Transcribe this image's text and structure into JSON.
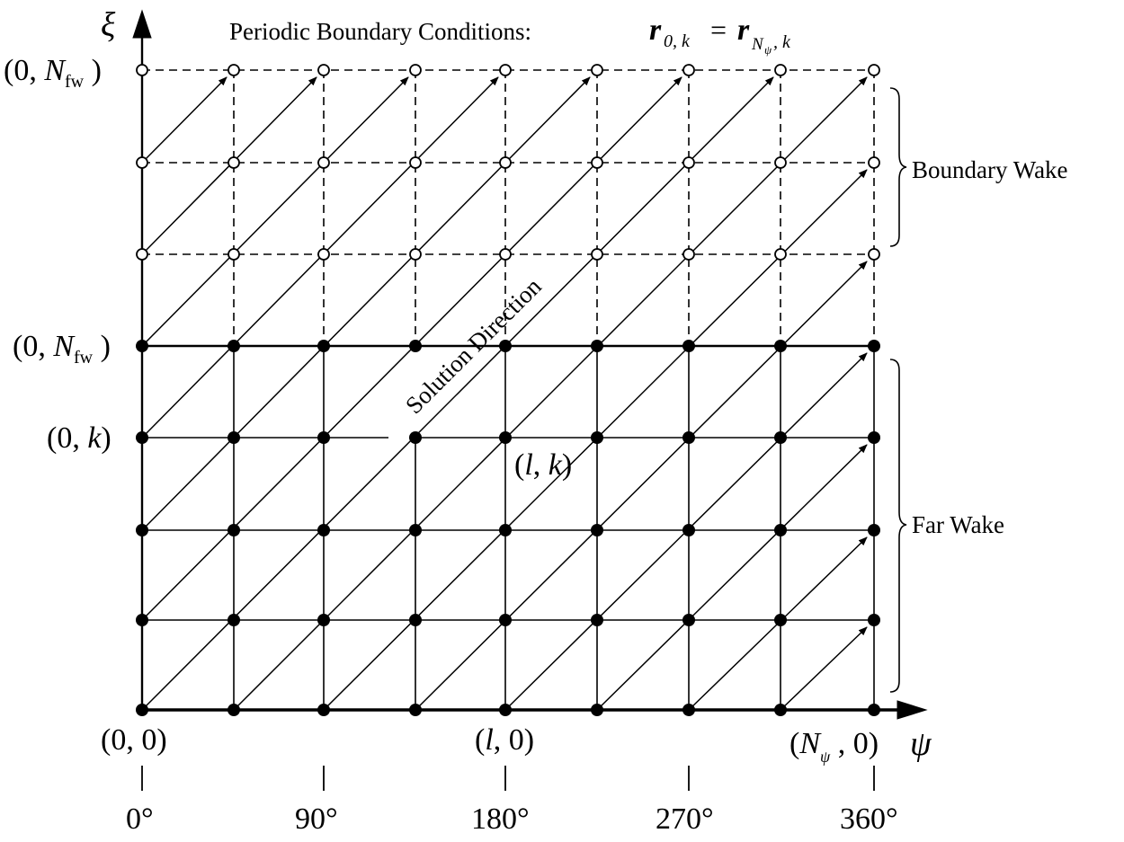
{
  "title": {
    "text": "Periodic Boundary Conditions:",
    "equation_lhs": "r",
    "equation_lhs_sub": "0, k",
    "equation_eq": "=",
    "equation_rhs": "r",
    "equation_rhs_sub_main": "N",
    "equation_rhs_sub_sub": "ψ",
    "equation_rhs_sub_tail": ", k"
  },
  "axes": {
    "vertical": "ξ",
    "horizontal": "ψ"
  },
  "left_labels": {
    "top": {
      "open": "(0, ",
      "var": "N",
      "sub": "fw",
      "close": " )"
    },
    "middle": {
      "open": "(0, ",
      "var": "N",
      "sub": "fw",
      "close": " )"
    },
    "k": {
      "open": "(0, ",
      "var": "k",
      "close": ")"
    }
  },
  "bottom_labels": {
    "origin": "(0, 0)",
    "l0": {
      "open": "(",
      "var": "l",
      "close": ", 0)"
    },
    "npsi": {
      "open": "(",
      "var": "N",
      "sub": "ψ",
      "close": " , 0)"
    }
  },
  "point_label": {
    "open": "(",
    "var": "l",
    "mid": ", ",
    "var2": "k",
    "close": ")"
  },
  "solution_direction": "Solution Direction",
  "regions": {
    "boundary_wake": "Boundary Wake",
    "far_wake": "Far Wake"
  },
  "degree_ticks": [
    "0°",
    "90°",
    "180°",
    "270°",
    "360°"
  ]
}
